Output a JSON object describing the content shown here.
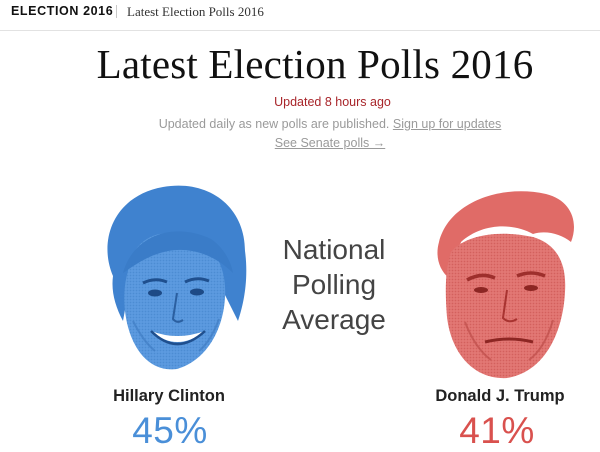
{
  "header": {
    "section_label": "ELECTION 2016",
    "breadcrumb": "Latest Election Polls 2016"
  },
  "main": {
    "title": "Latest Election Polls 2016",
    "updated": "Updated 8 hours ago",
    "subline_text": "Updated daily as new polls are published. ",
    "signup_link": "Sign up for updates",
    "senate_link": "See Senate polls →",
    "national_average_lines": [
      "National",
      "Polling",
      "Average"
    ]
  },
  "candidates": [
    {
      "name": "Hillary Clinton",
      "percent": "45%",
      "color": "#4a8fd8",
      "portrait": "clinton-portrait"
    },
    {
      "name": "Donald J. Trump",
      "percent": "41%",
      "color": "#d9514e",
      "portrait": "trump-portrait"
    }
  ]
}
